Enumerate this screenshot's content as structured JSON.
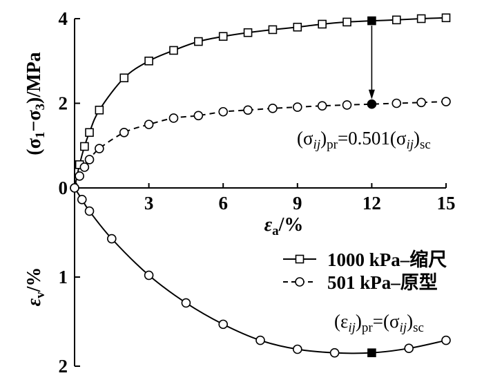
{
  "chart_data": {
    "type": "line",
    "grid": false,
    "legend_position": "center-right",
    "x_axis": {
      "label": [
        "ε",
        "a",
        "/%"
      ],
      "range": [
        0,
        15
      ],
      "ticks": [
        3,
        6,
        9,
        12,
        15
      ]
    },
    "panels": [
      {
        "y_axis": {
          "label": [
            "(σ",
            "1",
            "−σ",
            "3",
            ")/MPa"
          ],
          "range": [
            0,
            4
          ],
          "ticks": [
            0,
            2,
            4
          ]
        },
        "series": [
          {
            "name": "1000 kPa–缩尺",
            "marker": "square",
            "line": "solid",
            "color": "#000000",
            "marker_fill": "#ffffff",
            "x": [
              0,
              0.2,
              0.4,
              0.6,
              1,
              2,
              3,
              4,
              5,
              6,
              7,
              8,
              9,
              10,
              11,
              12,
              13,
              14,
              15
            ],
            "y": [
              0,
              0.55,
              0.98,
              1.31,
              1.84,
              2.6,
              3.0,
              3.25,
              3.46,
              3.58,
              3.67,
              3.74,
              3.8,
              3.87,
              3.92,
              3.95,
              3.97,
              4.0,
              4.02
            ],
            "highlight": {
              "x": 12,
              "marker": "square"
            }
          },
          {
            "name": "501 kPa–原型",
            "marker": "circle",
            "line": "dashed",
            "color": "#000000",
            "marker_fill": "#ffffff",
            "x": [
              0,
              0.2,
              0.4,
              0.6,
              1,
              2,
              3,
              4,
              5,
              6,
              7,
              8,
              9,
              10,
              11,
              12,
              13,
              14,
              15
            ],
            "y": [
              0,
              0.28,
              0.49,
              0.67,
              0.93,
              1.31,
              1.5,
              1.65,
              1.71,
              1.8,
              1.84,
              1.88,
              1.91,
              1.94,
              1.96,
              1.98,
              2.0,
              2.02,
              2.04
            ],
            "highlight": {
              "x": 12,
              "marker": "circle"
            }
          }
        ],
        "arrow": {
          "x": 12,
          "from_y": 3.95,
          "to_y": 1.98
        },
        "annotation": [
          "(σ",
          "ij",
          ")",
          "pr",
          "=0.501(σ",
          "ij",
          ")",
          "sc"
        ]
      },
      {
        "y_axis": {
          "label": [
            "ε",
            "v",
            "/%"
          ],
          "range": [
            0,
            2
          ],
          "inverted": true,
          "ticks": [
            1,
            2
          ]
        },
        "series": [
          {
            "marker": "circle",
            "line": "solid",
            "color": "#000000",
            "marker_fill": "#ffffff",
            "x": [
              0,
              0.3,
              0.6,
              1.5,
              3,
              4.5,
              6,
              7.5,
              9,
              10.5,
              12,
              13.5,
              15
            ],
            "y": [
              0,
              0.13,
              0.26,
              0.57,
              0.98,
              1.29,
              1.53,
              1.71,
              1.81,
              1.85,
              1.85,
              1.8,
              1.71
            ],
            "highlight": {
              "x": 12,
              "marker": "square"
            }
          }
        ],
        "annotation": [
          "(ε",
          "ij",
          ")",
          "pr",
          "=(σ",
          "ij",
          ")",
          "sc"
        ]
      }
    ]
  }
}
